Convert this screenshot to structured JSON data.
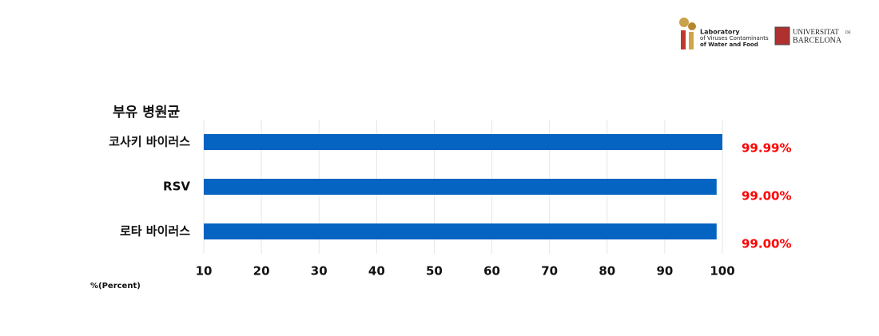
{
  "chart_data": {
    "type": "bar",
    "orientation": "horizontal",
    "title": "부유 병원균",
    "categories": [
      "코사키 바이러스",
      "RSV",
      "로타 바이러스"
    ],
    "values": [
      99.99,
      99.0,
      99.0
    ],
    "value_labels": [
      "99.99%",
      "99.00%",
      "99.00%"
    ],
    "color": "#0563c1",
    "value_label_color": "#ff0000",
    "xlim": [
      10,
      100
    ],
    "xticks": [
      10,
      20,
      30,
      40,
      50,
      60,
      70,
      80,
      90,
      100
    ],
    "x_label": "%(Percent)",
    "grid": true
  },
  "logos": {
    "lab": [
      "Laboratory",
      "of Viruses Contaminants",
      "of Water and Food"
    ],
    "university": [
      "UNIVERSITAT",
      "DE",
      "BARCELONA"
    ]
  }
}
